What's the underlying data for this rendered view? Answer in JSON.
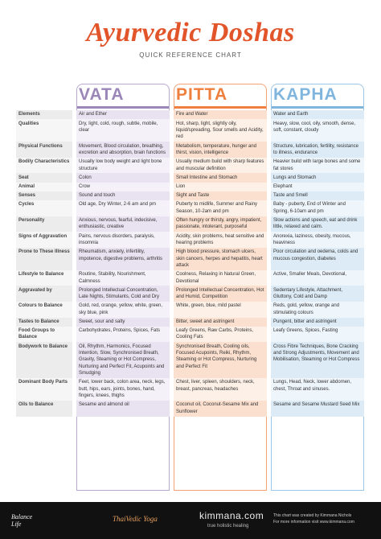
{
  "header": {
    "title": "Ayurvedic Doshas",
    "subtitle": "QUICK REFERENCE CHART"
  },
  "columns": [
    "VATA",
    "PITTA",
    "KAPHA"
  ],
  "rows": [
    [
      "Elements",
      "Air and Ether",
      "Fire and Water",
      "Water and Earth"
    ],
    [
      "Qualities",
      "Dry, light, cold, rough, subtle, mobile, clear",
      "Hot, sharp, light, slightly oily, liquid/spreading, Sour smells and Acidity, red",
      "Heavy, slow, cool, oily, smooth, dense, soft, constant, cloudy"
    ],
    [
      "Physical Functions",
      "Movement, Blood circulation, breathing, excretion and absorption, brain functions",
      "Metabolism, temperature, hunger and thirst, vision, intelligence",
      "Structure, lubrication, fertility, resistance to illness, endurance"
    ],
    [
      "Bodily Characteristics",
      "Usually low body weight and light bone structure",
      "Usually medium build with sharp features and muscular definition",
      "Heavier build with large bones and some fat stores"
    ],
    [
      "Seat",
      "Colon",
      "Small Intestine and Stomach",
      "Lungs and Stomach"
    ],
    [
      "Animal",
      "Crow",
      "Lion",
      "Elephant"
    ],
    [
      "Senses",
      "Sound and touch",
      "Sight and Taste",
      "Taste and Smell"
    ],
    [
      "Cycles",
      "Old age, Dry Winter, 2-6 am and pm",
      "Puberty to midlife, Summer and Rainy Season, 10-2am and pm",
      "Baby - puberty, End of Winter and Spring, 6-10am and pm"
    ],
    [
      "Personality",
      "Anxious, nervous, fearful, indecisive, enthusiastic, creative",
      "Often hungry or thirsty, angry, impatient, passionate, intolerant, purposeful",
      "Slow actions and speech, eat and drink little, relaxed and calm."
    ],
    [
      "Signs of Aggravation",
      "Pains, nervous disorders, paralysis, insomnia",
      "Acidity, skin problems, heat sensitive and hearing problems",
      "Anorexia, laziness, obesity, mucous, heaviness"
    ],
    [
      "Prone to These Illness",
      "Rheumatism, anxiety, infertility, impotence, digestive problems, arthritis",
      "High blood pressure, stomach ulcers, skin cancers, herpes and hepatitis, heart attack",
      "Poor circulation and oedema, colds and mucous congestion, diabetes"
    ],
    [
      "Lifestyle to Balance",
      "Routine, Stability, Nourishment, Calmness",
      "Coolness, Relaxing in Natural Green, Devotional",
      "Active, Smaller Meals, Devotional,"
    ],
    [
      "Aggravated by",
      "Prolonged Intellectual Concentration, Late Nights, Stimulants, Cold and Dry",
      "Prolonged Intellectual Concentration, Hot and Humid, Competition",
      "Sedentary Lifestyle, Attachment, Gluttony, Cold and Damp"
    ],
    [
      "Colours to Balance",
      "Gold, red, orange, yellow, white, green, sky blue, pink",
      "White, green, blue, mild pastel",
      "Reds, gold, yellow, orange and stimulating colours"
    ],
    [
      "Tastes to Balance",
      "Sweet, sour and salty",
      "Bitter, sweet and astringent",
      "Pungent, bitter and astringent"
    ],
    [
      "Food Groups to Balance",
      "Carbohydrates, Proteins, Spices, Fats",
      "Leafy Greens, Raw Carbs, Proteins, Cooling Fats",
      "Leafy Greens, Spices, Fasting"
    ],
    [
      "Bodywork to Balance",
      "Oil, Rhythm, Harmonics, Focused Intention, Slow, Synchronised Breath, Gravity, Steaming or Hot Compress, Nurturing and Perfect Fit, Acupoints and Smudging",
      "Synchronised Breath, Cooling oils, Focused Acupoints, Reiki, Rhythm, Steaming or Hot Compress, Nurturing and Perfect Fit",
      "Cross Fibre Techniques, Bone Cracking and Strong Adjustments, Movement and Mobilisation, Steaming or Hot Compress"
    ],
    [
      "Dominant Body Parts",
      "Feet, lower back, colon area, neck, legs, butt, hips, ears, joints, bones, hand, fingers, knees, thighs",
      "Chest, liver, spleen, shoulders, neck, breast, pancreas, headaches",
      "Lungs, Head, Neck, lower abdomen, chest, Throat and sinuses."
    ],
    [
      "Oils to Balance",
      "Sesame and almond oil",
      "Coconut oil, Coconut-Sesame Mix and Sunflower",
      "Sesame and Sesame Mustard Seed Mix"
    ]
  ],
  "footer": {
    "brand1": "Balance Life",
    "brand2": "ThaiVedic Yoga",
    "site": "kimmana.com",
    "tagline": "true holistic healing",
    "credit": "This chart was created by Kimmana Nichols",
    "info": "For more information visit www.kimmana.com"
  }
}
